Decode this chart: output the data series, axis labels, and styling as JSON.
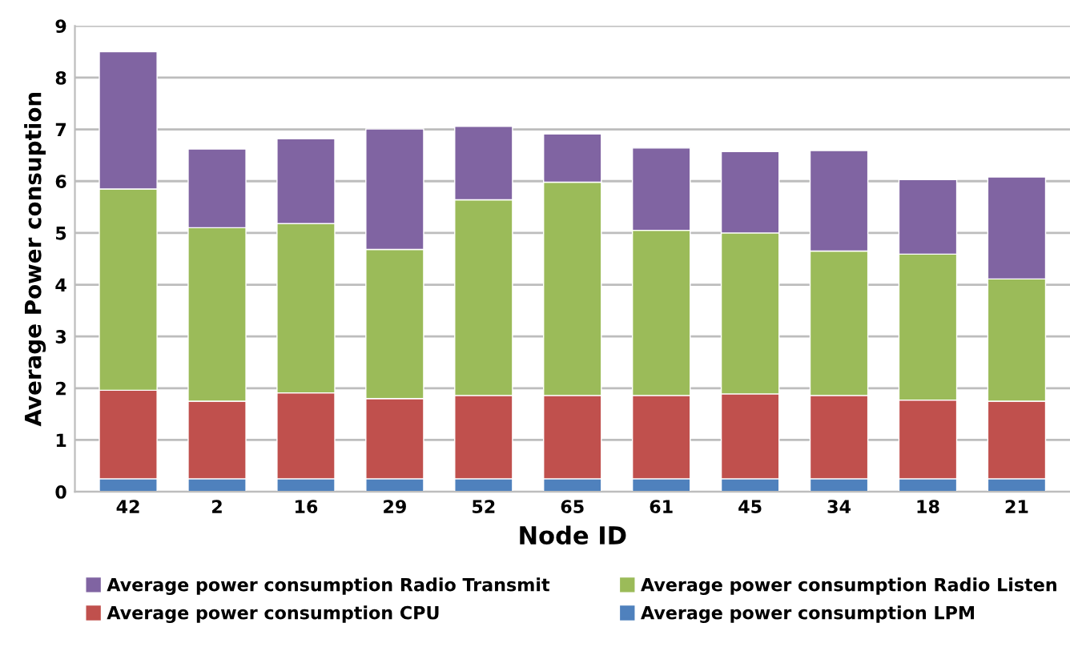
{
  "chart_data": {
    "type": "bar",
    "stacked": true,
    "xlabel": "Node ID",
    "ylabel": "Average Power consuption",
    "categories": [
      "42",
      "2",
      "16",
      "29",
      "52",
      "65",
      "61",
      "45",
      "34",
      "18",
      "21"
    ],
    "series": [
      {
        "name": "Average power consumption LPM",
        "color": "#4f81bd",
        "values": [
          0.25,
          0.25,
          0.25,
          0.25,
          0.25,
          0.25,
          0.25,
          0.25,
          0.25,
          0.25,
          0.25
        ]
      },
      {
        "name": "Average power consumption CPU",
        "color": "#c0504d",
        "values": [
          1.71,
          1.5,
          1.66,
          1.55,
          1.61,
          1.61,
          1.61,
          1.64,
          1.61,
          1.52,
          1.5
        ]
      },
      {
        "name": "Average power consumption Radio Listen",
        "color": "#9bbb59",
        "values": [
          3.89,
          3.35,
          3.27,
          2.88,
          3.78,
          4.12,
          3.19,
          3.11,
          2.79,
          2.82,
          2.36
        ]
      },
      {
        "name": "Average power consumption Radio Transmit",
        "color": "#8064a2",
        "values": [
          2.65,
          1.52,
          1.64,
          2.33,
          1.42,
          0.93,
          1.59,
          1.57,
          1.94,
          1.44,
          1.97
        ]
      }
    ],
    "ylim": [
      0,
      9
    ],
    "yticks": [
      0,
      1,
      2,
      3,
      4,
      5,
      6,
      7,
      8,
      9
    ],
    "grid": "y",
    "legend": "bottom"
  }
}
